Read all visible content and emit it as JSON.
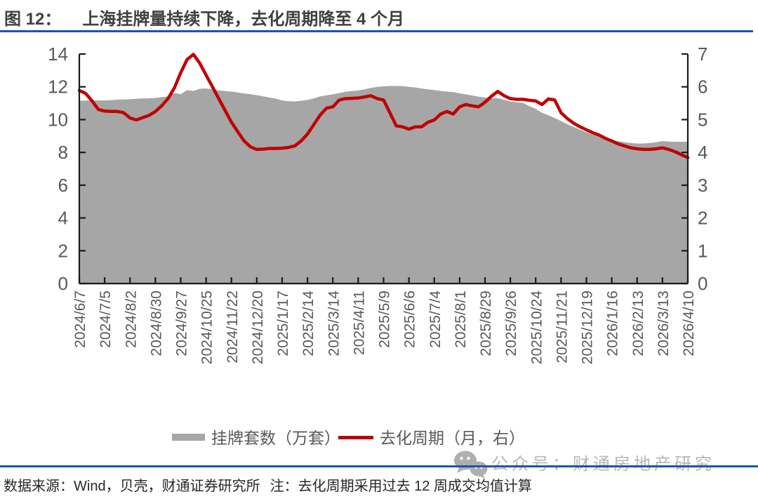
{
  "header": {
    "figure_label": "图 12：",
    "title": "上海挂牌量持续下降，去化周期降至 4 个月"
  },
  "footer": {
    "source": "数据来源：Wind，贝壳，财通证券研究所",
    "note": "注：去化周期采用过去 12 周成交均值计算"
  },
  "watermark": {
    "icon": "wechat-icon",
    "text": "公众号：财通房地产研究"
  },
  "colors": {
    "accent_blue": "#1b57a5",
    "area_gray": "#a6a6a6",
    "line_red": "#c00000",
    "axis_black": "#1a1a1a",
    "label_gray": "#595959",
    "watermark_gray": "#b0b0b0",
    "title_gray": "#3f3f3f"
  },
  "chart_data": {
    "type": "area",
    "subtype": "combo area + line, dual axis",
    "title": "上海挂牌量持续下降，去化周期降至 4 个月",
    "x_tick_labels": [
      "2024/6/7",
      "2024/7/5",
      "2024/8/2",
      "2024/8/30",
      "2024/9/27",
      "2024/10/25",
      "2024/11/22",
      "2024/12/20",
      "2025/1/17",
      "2025/2/14",
      "2025/3/14",
      "2025/4/11",
      "2025/5/9",
      "2025/6/6",
      "2025/7/4",
      "2025/8/1",
      "2025/8/29",
      "2025/9/26",
      "2025/10/24",
      "2025/11/21",
      "2025/12/19",
      "2026/1/16",
      "2026/2/13",
      "2026/3/13",
      "2026/4/10"
    ],
    "points_per_tick": 4,
    "grid": false,
    "legend_position": "bottom",
    "axes": {
      "left": {
        "min": 0,
        "max": 14,
        "ticks": [
          0,
          2,
          4,
          6,
          8,
          10,
          12,
          14
        ]
      },
      "right": {
        "min": 0,
        "max": 7,
        "ticks": [
          0,
          1,
          2,
          3,
          4,
          5,
          6,
          7
        ]
      }
    },
    "series": [
      {
        "name": "挂牌套数（万套）",
        "type": "area",
        "axis": "left",
        "color": "#a6a6a6",
        "values": [
          11.15,
          11.16,
          11.18,
          11.17,
          11.17,
          11.19,
          11.22,
          11.23,
          11.24,
          11.27,
          11.29,
          11.3,
          11.32,
          11.37,
          11.42,
          11.63,
          11.55,
          11.8,
          11.75,
          11.88,
          11.9,
          11.85,
          11.78,
          11.74,
          11.71,
          11.66,
          11.6,
          11.55,
          11.49,
          11.42,
          11.35,
          11.28,
          11.17,
          11.12,
          11.11,
          11.15,
          11.2,
          11.3,
          11.42,
          11.48,
          11.54,
          11.62,
          11.7,
          11.74,
          11.78,
          11.85,
          11.93,
          12.0,
          12.03,
          12.05,
          12.05,
          12.04,
          12.0,
          11.96,
          11.9,
          11.85,
          11.8,
          11.75,
          11.71,
          11.68,
          11.6,
          11.54,
          11.47,
          11.4,
          11.35,
          11.3,
          11.32,
          11.2,
          11.11,
          11.06,
          11.02,
          10.82,
          10.66,
          10.41,
          10.27,
          10.1,
          9.91,
          9.72,
          9.55,
          9.38,
          9.23,
          9.09,
          8.98,
          8.86,
          8.76,
          8.69,
          8.62,
          8.57,
          8.54,
          8.54,
          8.57,
          8.62,
          8.69,
          8.66,
          8.65,
          8.65,
          8.65
        ]
      },
      {
        "name": "去化周期（月，右）",
        "type": "line",
        "axis": "right",
        "color": "#c00000",
        "values": [
          5.89,
          5.8,
          5.57,
          5.31,
          5.26,
          5.25,
          5.25,
          5.21,
          5.05,
          4.99,
          5.06,
          5.13,
          5.25,
          5.42,
          5.64,
          5.97,
          6.43,
          6.83,
          6.99,
          6.72,
          6.36,
          6.0,
          5.64,
          5.28,
          4.92,
          4.63,
          4.35,
          4.17,
          4.09,
          4.1,
          4.12,
          4.12,
          4.13,
          4.15,
          4.2,
          4.35,
          4.56,
          4.85,
          5.14,
          5.35,
          5.39,
          5.6,
          5.64,
          5.65,
          5.66,
          5.69,
          5.73,
          5.64,
          5.6,
          5.21,
          4.81,
          4.78,
          4.71,
          4.78,
          4.78,
          4.92,
          4.99,
          5.17,
          5.25,
          5.17,
          5.39,
          5.46,
          5.42,
          5.39,
          5.53,
          5.71,
          5.86,
          5.73,
          5.64,
          5.62,
          5.62,
          5.59,
          5.57,
          5.46,
          5.63,
          5.6,
          5.21,
          5.03,
          4.89,
          4.78,
          4.69,
          4.6,
          4.53,
          4.43,
          4.35,
          4.26,
          4.2,
          4.14,
          4.11,
          4.09,
          4.09,
          4.11,
          4.14,
          4.09,
          4.02,
          3.93,
          3.84
        ]
      }
    ]
  }
}
